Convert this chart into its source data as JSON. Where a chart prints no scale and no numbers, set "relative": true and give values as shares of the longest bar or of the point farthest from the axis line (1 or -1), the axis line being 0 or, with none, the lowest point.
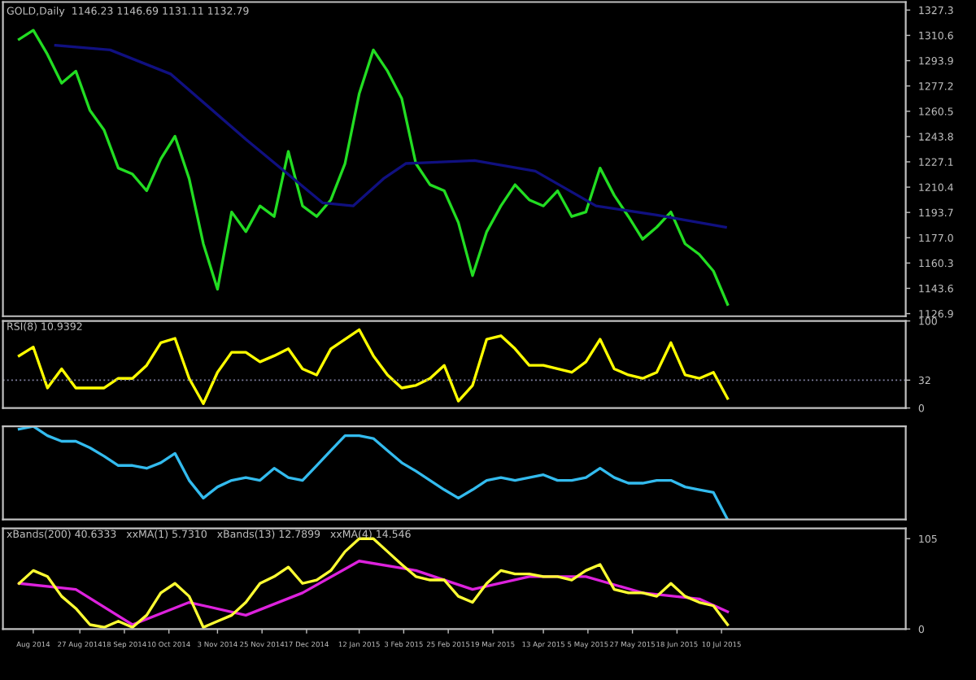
{
  "chart_data": [
    {
      "type": "line",
      "title": "GOLD,Daily  1146.23 1146.69 1131.11 1132.79",
      "x": [
        "2014-07-28",
        "2014-08-04",
        "2014-08-11",
        "2014-08-18",
        "2014-08-25",
        "2014-09-01",
        "2014-09-08",
        "2014-09-15",
        "2014-09-22",
        "2014-09-29",
        "2014-10-06",
        "2014-10-13",
        "2014-10-20",
        "2014-10-27",
        "2014-11-03",
        "2014-11-10",
        "2014-11-17",
        "2014-11-24",
        "2014-12-01",
        "2014-12-08",
        "2014-12-15",
        "2014-12-22",
        "2014-12-29",
        "2015-01-05",
        "2015-01-12",
        "2015-01-19",
        "2015-01-26",
        "2015-02-02",
        "2015-02-09",
        "2015-02-16",
        "2015-02-23",
        "2015-03-02",
        "2015-03-09",
        "2015-03-16",
        "2015-03-23",
        "2015-03-30",
        "2015-04-06",
        "2015-04-13",
        "2015-04-20",
        "2015-04-27",
        "2015-05-04",
        "2015-05-11",
        "2015-05-18",
        "2015-05-25",
        "2015-06-01",
        "2015-06-08",
        "2015-06-15",
        "2015-06-22",
        "2015-06-29",
        "2015-07-06",
        "2015-07-13"
      ],
      "series": [
        {
          "color": "#22dd22",
          "values": [
            1308,
            1314,
            1298,
            1279,
            1287,
            1261,
            1248,
            1223,
            1219,
            1208,
            1229,
            1244,
            1216,
            1173,
            1143,
            1194,
            1181,
            1198,
            1191,
            1234,
            1198,
            1191,
            1202,
            1226,
            1272,
            1301,
            1287,
            1269,
            1226,
            1212,
            1208,
            1187,
            1152,
            1181,
            1198,
            1212,
            1202,
            1198,
            1208,
            1191,
            1194,
            1223,
            1205,
            1191,
            1176,
            1184,
            1194,
            1173,
            1166,
            1155,
            1133
          ]
        },
        {
          "color": "#101080",
          "x": [
            "2014-08-15",
            "2014-09-11",
            "2014-10-11",
            "2014-11-17",
            "2014-12-25",
            "2015-01-09",
            "2015-01-24",
            "2015-02-04",
            "2015-03-10",
            "2015-04-09",
            "2015-05-09",
            "2015-06-08",
            "2015-07-12"
          ],
          "values": [
            1304,
            1301,
            1285,
            1242,
            1200,
            1198,
            1216,
            1226,
            1228,
            1221,
            1198,
            1192,
            1184
          ]
        }
      ],
      "xlim": [
        "2014-07-20",
        "2015-10-09"
      ],
      "ylim": [
        1125.2,
        1332.6
      ],
      "yticks": [
        {
          "value": 1126.9,
          "label": "1126.9"
        },
        {
          "value": 1143.6,
          "label": "1143.6"
        },
        {
          "value": 1160.3,
          "label": "1160.3"
        },
        {
          "value": 1177.0,
          "label": "1177.0"
        },
        {
          "value": 1193.7,
          "label": "1193.7"
        },
        {
          "value": 1210.4,
          "label": "1210.4"
        },
        {
          "value": 1227.1,
          "label": "1227.1"
        },
        {
          "value": 1243.8,
          "label": "1243.8"
        },
        {
          "value": 1260.5,
          "label": "1260.5"
        },
        {
          "value": 1277.2,
          "label": "1277.2"
        },
        {
          "value": 1293.9,
          "label": "1293.9"
        },
        {
          "value": 1310.6,
          "label": "1310.6"
        },
        {
          "value": 1327.3,
          "label": "1327.3"
        }
      ],
      "tick_labels": "y",
      "grid": false
    },
    {
      "type": "line",
      "title": "RSI(8) 10.9392",
      "x": [
        "2014-07-28",
        "2014-08-04",
        "2014-08-11",
        "2014-08-18",
        "2014-08-25",
        "2014-09-01",
        "2014-09-08",
        "2014-09-15",
        "2014-09-22",
        "2014-09-29",
        "2014-10-06",
        "2014-10-13",
        "2014-10-20",
        "2014-10-27",
        "2014-11-03",
        "2014-11-10",
        "2014-11-17",
        "2014-11-24",
        "2014-12-01",
        "2014-12-08",
        "2014-12-15",
        "2014-12-22",
        "2014-12-29",
        "2015-01-05",
        "2015-01-12",
        "2015-01-19",
        "2015-01-26",
        "2015-02-02",
        "2015-02-09",
        "2015-02-16",
        "2015-02-23",
        "2015-03-02",
        "2015-03-09",
        "2015-03-16",
        "2015-03-23",
        "2015-03-30",
        "2015-04-06",
        "2015-04-13",
        "2015-04-20",
        "2015-04-27",
        "2015-05-04",
        "2015-05-11",
        "2015-05-18",
        "2015-05-25",
        "2015-06-01",
        "2015-06-08",
        "2015-06-15",
        "2015-06-22",
        "2015-06-29",
        "2015-07-06",
        "2015-07-13"
      ],
      "series": [
        {
          "color": "#ffff00",
          "values": [
            60,
            70,
            23,
            45,
            23,
            23,
            23,
            34,
            34,
            49,
            75,
            80,
            34,
            5,
            41,
            64,
            64,
            53,
            60,
            68,
            45,
            38,
            68,
            79,
            90,
            60,
            38,
            23,
            26,
            34,
            49,
            8,
            26,
            79,
            83,
            68,
            49,
            49,
            45,
            41,
            53,
            79,
            45,
            38,
            34,
            41,
            75,
            38,
            34,
            41,
            11
          ]
        }
      ],
      "xlim": [
        "2014-07-20",
        "2015-10-09"
      ],
      "ylim": [
        0,
        100
      ],
      "yticks": [
        0,
        32,
        100
      ],
      "ref_lines": [
        {
          "axis": "y",
          "value": 32,
          "color": "#8080a0",
          "line_style": "dotted"
        }
      ],
      "tick_labels": "y",
      "grid": false
    },
    {
      "type": "line",
      "relative": true,
      "x": [
        "2014-07-28",
        "2014-08-04",
        "2014-08-11",
        "2014-08-18",
        "2014-08-25",
        "2014-09-01",
        "2014-09-08",
        "2014-09-15",
        "2014-09-22",
        "2014-09-29",
        "2014-10-06",
        "2014-10-13",
        "2014-10-20",
        "2014-10-27",
        "2014-11-03",
        "2014-11-10",
        "2014-11-17",
        "2014-11-24",
        "2014-12-01",
        "2014-12-08",
        "2014-12-15",
        "2014-12-22",
        "2014-12-29",
        "2015-01-05",
        "2015-01-12",
        "2015-01-19",
        "2015-01-26",
        "2015-02-02",
        "2015-02-09",
        "2015-02-16",
        "2015-02-23",
        "2015-03-02",
        "2015-03-09",
        "2015-03-16",
        "2015-03-23",
        "2015-03-30",
        "2015-04-06",
        "2015-04-13",
        "2015-04-20",
        "2015-04-27",
        "2015-05-04",
        "2015-05-11",
        "2015-05-18",
        "2015-05-25",
        "2015-06-01",
        "2015-06-08",
        "2015-06-15",
        "2015-06-22",
        "2015-06-29",
        "2015-07-06",
        "2015-07-13"
      ],
      "series": [
        {
          "color": "#33bbee",
          "values": [
            0.97,
            1.0,
            0.9,
            0.84,
            0.84,
            0.77,
            0.68,
            0.58,
            0.58,
            0.55,
            0.61,
            0.71,
            0.42,
            0.23,
            0.35,
            0.42,
            0.45,
            0.42,
            0.55,
            0.45,
            0.42,
            0.58,
            0.74,
            0.9,
            0.9,
            0.87,
            0.74,
            0.61,
            0.52,
            0.42,
            0.32,
            0.23,
            0.32,
            0.42,
            0.45,
            0.42,
            0.45,
            0.48,
            0.42,
            0.42,
            0.45,
            0.55,
            0.45,
            0.39,
            0.39,
            0.42,
            0.42,
            0.35,
            0.32,
            0.29,
            0
          ]
        }
      ],
      "xlim": [
        "2014-07-20",
        "2015-10-09"
      ],
      "tick_labels": false,
      "grid": false
    },
    {
      "type": "line",
      "title": "xBands(200) 40.6333   xxMA(1) 5.7310   xBands(13) 12.7899   xxMA(4) 14.546",
      "x": [
        "2014-07-28",
        "2014-08-04",
        "2014-08-11",
        "2014-08-18",
        "2014-08-25",
        "2014-09-01",
        "2014-09-08",
        "2014-09-15",
        "2014-09-22",
        "2014-09-29",
        "2014-10-06",
        "2014-10-13",
        "2014-10-20",
        "2014-10-27",
        "2014-11-03",
        "2014-11-10",
        "2014-11-17",
        "2014-11-24",
        "2014-12-01",
        "2014-12-08",
        "2014-12-15",
        "2014-12-22",
        "2014-12-29",
        "2015-01-05",
        "2015-01-12",
        "2015-01-19",
        "2015-01-26",
        "2015-02-02",
        "2015-02-09",
        "2015-02-16",
        "2015-02-23",
        "2015-03-02",
        "2015-03-09",
        "2015-03-16",
        "2015-03-23",
        "2015-03-30",
        "2015-04-06",
        "2015-04-13",
        "2015-04-20",
        "2015-04-27",
        "2015-05-04",
        "2015-05-11",
        "2015-05-18",
        "2015-05-25",
        "2015-06-01",
        "2015-06-08",
        "2015-06-15",
        "2015-06-22",
        "2015-06-29",
        "2015-07-06",
        "2015-07-13"
      ],
      "series": [
        {
          "color": "#dd22dd",
          "x": [
            "2014-07-28",
            "2014-08-25",
            "2014-09-22",
            "2014-10-20",
            "2014-11-17",
            "2014-12-15",
            "2015-01-12",
            "2015-02-09",
            "2015-03-09",
            "2015-04-06",
            "2015-05-04",
            "2015-06-01",
            "2015-06-29",
            "2015-07-13"
          ],
          "values": [
            53,
            46,
            5,
            31,
            16,
            42,
            79,
            68,
            46,
            61,
            61,
            42,
            35,
            20
          ]
        },
        {
          "color": "#ffff33",
          "values": [
            53,
            68,
            61,
            38,
            24,
            5,
            2,
            9,
            2,
            16,
            42,
            53,
            38,
            2,
            9,
            16,
            31,
            53,
            61,
            72,
            53,
            57,
            68,
            90,
            105,
            105,
            90,
            75,
            61,
            57,
            57,
            38,
            31,
            53,
            68,
            64,
            64,
            61,
            61,
            57,
            68,
            75,
            46,
            42,
            42,
            38,
            53,
            38,
            31,
            27,
            5
          ]
        }
      ],
      "xlim": [
        "2014-07-20",
        "2015-10-09"
      ],
      "ylim": [
        0,
        117
      ],
      "yticks": [
        0,
        105
      ],
      "xticks": [
        {
          "value": "2014-08-04",
          "label": "Aug 2014"
        },
        {
          "value": "2014-08-27",
          "label": "27 Aug 2014"
        },
        {
          "value": "2014-09-18",
          "label": "18 Sep 2014"
        },
        {
          "value": "2014-10-10",
          "label": "10 Oct 2014"
        },
        {
          "value": "2014-11-03",
          "label": "3 Nov 2014"
        },
        {
          "value": "2014-11-25",
          "label": "25 Nov 2014"
        },
        {
          "value": "2014-12-17",
          "label": "17 Dec 2014"
        },
        {
          "value": "2015-01-12",
          "label": "12 Jan 2015"
        },
        {
          "value": "2015-02-03",
          "label": "3 Feb 2015"
        },
        {
          "value": "2015-02-25",
          "label": "25 Feb 2015"
        },
        {
          "value": "2015-03-19",
          "label": "19 Mar 2015"
        },
        {
          "value": "2015-04-13",
          "label": "13 Apr 2015"
        },
        {
          "value": "2015-05-05",
          "label": "5 May 2015"
        },
        {
          "value": "2015-05-27",
          "label": "27 May 2015"
        },
        {
          "value": "2015-06-18",
          "label": "18 Jun 2015"
        },
        {
          "value": "2015-07-10",
          "label": "10 Jul 2015"
        }
      ],
      "grid": false
    }
  ]
}
